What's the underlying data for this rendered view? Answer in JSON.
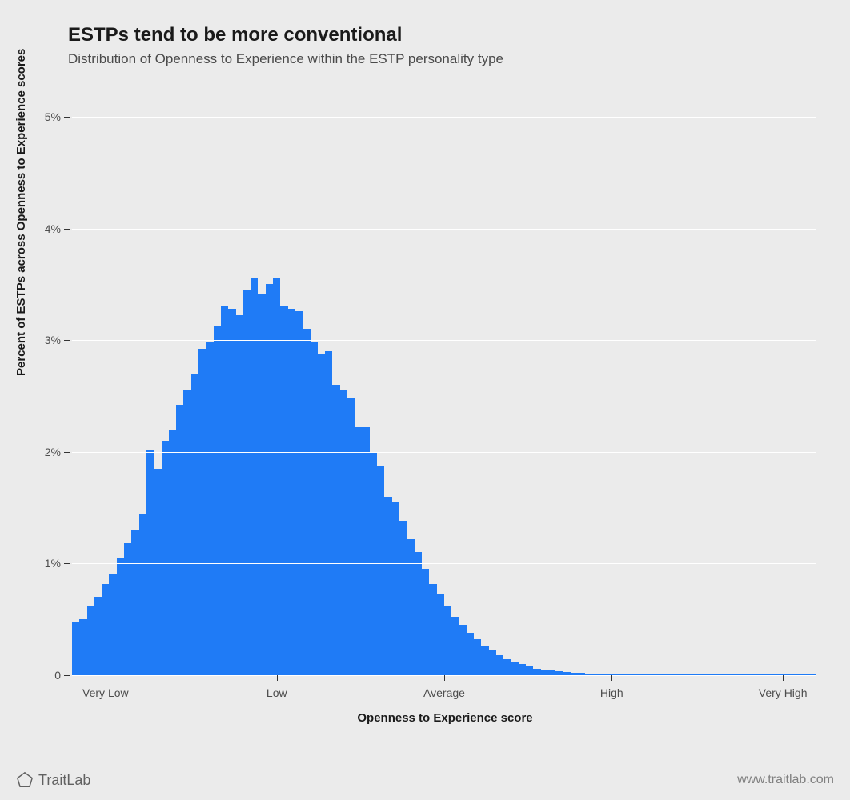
{
  "chart": {
    "type": "histogram",
    "title": "ESTPs tend to be more conventional",
    "subtitle": "Distribution of Openness to Experience within the ESTP personality type",
    "y_axis_title": "Percent of ESTPs across Openness to Experience scores",
    "x_axis_title": "Openness to Experience score",
    "bar_color": "#1f7bf6",
    "background_color": "#ebebeb",
    "grid_color": "#ffffff",
    "tick_color": "#333333",
    "text_color": "#4d4d4d",
    "title_fontsize": 24,
    "subtitle_fontsize": 17,
    "axis_title_fontsize": 15,
    "tick_fontsize": 14,
    "ylim": [
      0,
      5.3
    ],
    "y_ticks": [
      0,
      1,
      2,
      3,
      4,
      5
    ],
    "y_tick_labels": [
      "0",
      "1%",
      "2%",
      "3%",
      "4%",
      "5%"
    ],
    "x_tick_positions": [
      0.045,
      0.275,
      0.5,
      0.725,
      0.955
    ],
    "x_tick_labels": [
      "Very Low",
      "Low",
      "Average",
      "High",
      "Very High"
    ],
    "values": [
      0.48,
      0.5,
      0.62,
      0.7,
      0.82,
      0.91,
      1.05,
      1.18,
      1.3,
      1.44,
      2.02,
      1.85,
      2.1,
      2.2,
      2.42,
      2.55,
      2.7,
      2.92,
      2.98,
      3.12,
      3.3,
      3.28,
      3.22,
      3.45,
      3.55,
      3.42,
      3.5,
      3.55,
      3.3,
      3.28,
      3.26,
      3.1,
      2.98,
      2.88,
      2.9,
      2.6,
      2.55,
      2.48,
      2.22,
      2.22,
      2.0,
      1.88,
      1.6,
      1.55,
      1.38,
      1.22,
      1.1,
      0.95,
      0.82,
      0.72,
      0.62,
      0.52,
      0.45,
      0.38,
      0.32,
      0.26,
      0.22,
      0.18,
      0.14,
      0.12,
      0.1,
      0.08,
      0.06,
      0.05,
      0.04,
      0.035,
      0.03,
      0.025,
      0.02,
      0.018,
      0.016,
      0.014,
      0.013,
      0.012,
      0.011,
      0.01,
      0.01,
      0.01,
      0.01,
      0.01,
      0.01,
      0.01,
      0.01,
      0.01,
      0.01,
      0.01,
      0.01,
      0.01,
      0.01,
      0.01,
      0.01,
      0.01,
      0.01,
      0.01,
      0.01,
      0.01,
      0.01,
      0.01,
      0.01,
      0.01
    ]
  },
  "footer": {
    "brand": "TraitLab",
    "url": "www.traitlab.com",
    "logo_stroke": "#616161"
  }
}
